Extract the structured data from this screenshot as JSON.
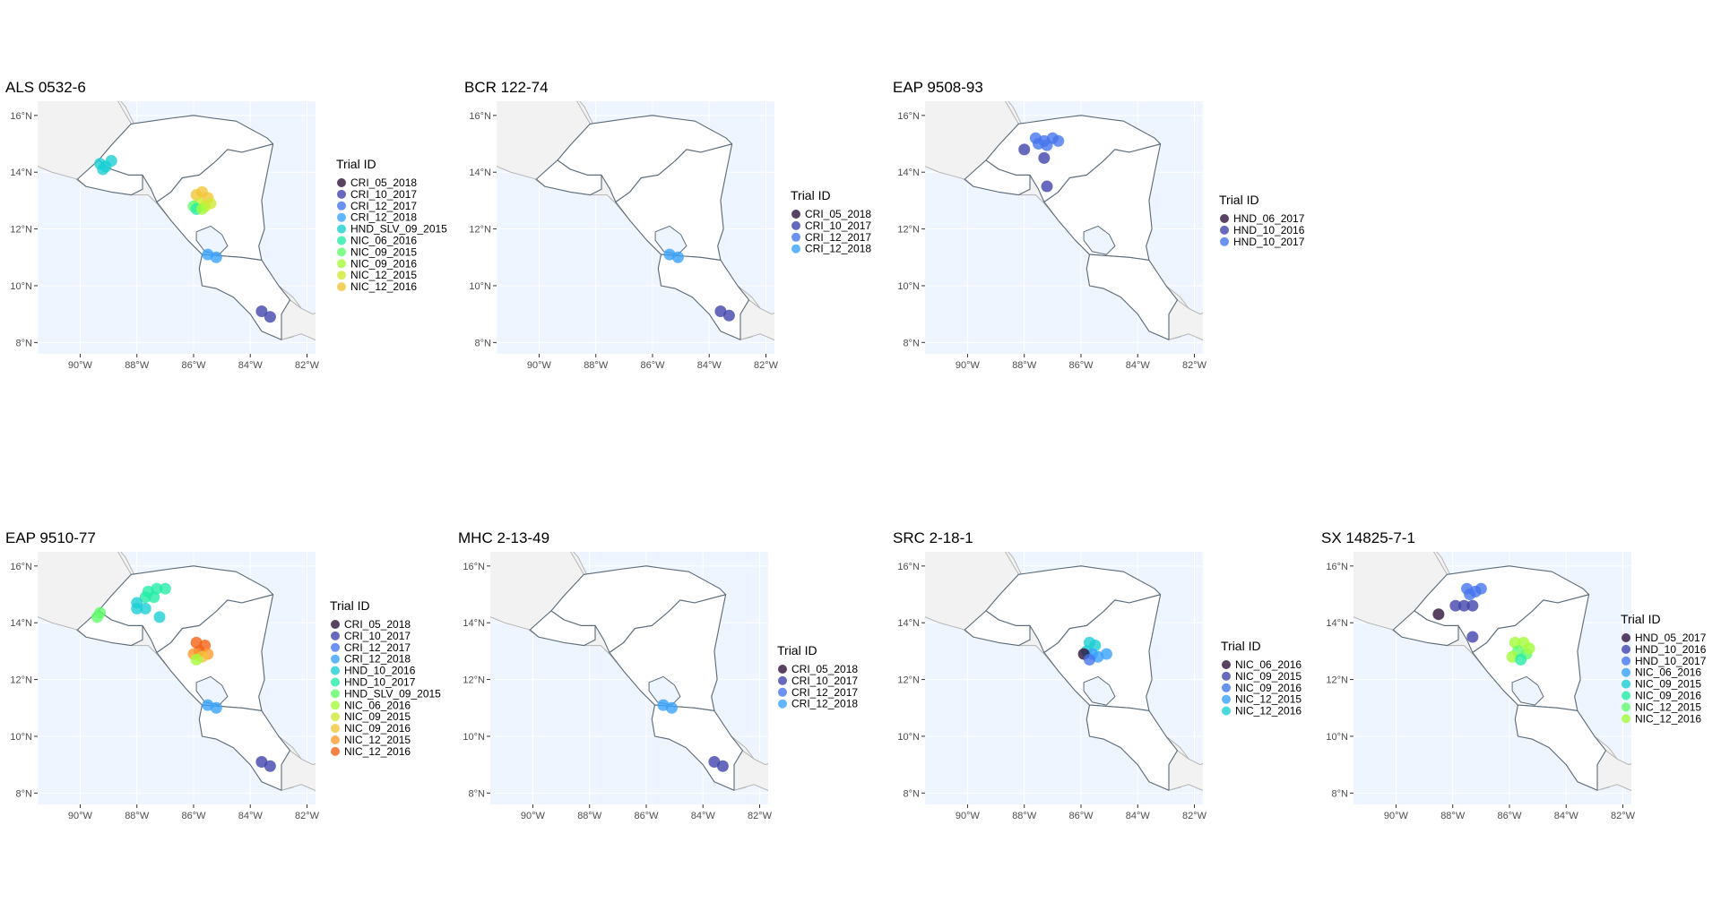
{
  "map": {
    "lon_range": [
      -91.5,
      -81.7
    ],
    "lat_range": [
      7.6,
      16.5
    ],
    "lon_ticks": [
      -90,
      -88,
      -86,
      -84,
      -82
    ],
    "lat_ticks": [
      8,
      10,
      12,
      14,
      16
    ],
    "lon_labels": [
      "90°W",
      "88°W",
      "86°W",
      "84°W",
      "82°W"
    ],
    "lat_labels": [
      "8°N",
      "10°N",
      "12°N",
      "14°N",
      "16°N"
    ],
    "legend_title": "Trial ID",
    "colors": {
      "ocean": "#eef5ff",
      "land_out": "#f2f2f2",
      "land_in": "#ffffff",
      "border": "#5b6b79",
      "grid": "#ffffff"
    }
  },
  "panels": [
    {
      "title": "ALS 0532-6",
      "legend": [
        {
          "label": "CRI_05_2018",
          "color": "#30123b"
        },
        {
          "label": "CRI_10_2017",
          "color": "#4145ab"
        },
        {
          "label": "CRI_12_2017",
          "color": "#4675ed"
        },
        {
          "label": "CRI_12_2018",
          "color": "#39a2fc"
        },
        {
          "label": "HND_SLV_09_2015",
          "color": "#1bcfd4"
        },
        {
          "label": "NIC_06_2016",
          "color": "#24eca6"
        },
        {
          "label": "NIC_09_2015",
          "color": "#61fc6c"
        },
        {
          "label": "NIC_09_2016",
          "color": "#a4fc3b"
        },
        {
          "label": "NIC_12_2015",
          "color": "#d1e834"
        },
        {
          "label": "NIC_12_2016",
          "color": "#f3c63a"
        }
      ],
      "points": [
        {
          "lon": -89.3,
          "lat": 14.3,
          "c": 4
        },
        {
          "lon": -89.1,
          "lat": 14.2,
          "c": 4
        },
        {
          "lon": -88.9,
          "lat": 14.4,
          "c": 4
        },
        {
          "lon": -89.2,
          "lat": 14.1,
          "c": 4
        },
        {
          "lon": -85.9,
          "lat": 13.2,
          "c": 9
        },
        {
          "lon": -85.7,
          "lat": 13.3,
          "c": 9
        },
        {
          "lon": -85.5,
          "lat": 13.1,
          "c": 9
        },
        {
          "lon": -85.8,
          "lat": 12.9,
          "c": 8
        },
        {
          "lon": -85.6,
          "lat": 12.8,
          "c": 8
        },
        {
          "lon": -85.4,
          "lat": 12.9,
          "c": 8
        },
        {
          "lon": -86.0,
          "lat": 12.8,
          "c": 6
        },
        {
          "lon": -85.9,
          "lat": 12.7,
          "c": 5
        },
        {
          "lon": -85.7,
          "lat": 12.7,
          "c": 7
        },
        {
          "lon": -85.5,
          "lat": 11.1,
          "c": 3
        },
        {
          "lon": -85.2,
          "lat": 11.0,
          "c": 3
        },
        {
          "lon": -83.6,
          "lat": 9.1,
          "c": 1
        },
        {
          "lon": -83.3,
          "lat": 8.9,
          "c": 1
        }
      ]
    },
    {
      "title": "BCR 122-74",
      "legend": [
        {
          "label": "CRI_05_2018",
          "color": "#30123b"
        },
        {
          "label": "CRI_10_2017",
          "color": "#4145ab"
        },
        {
          "label": "CRI_12_2017",
          "color": "#4675ed"
        },
        {
          "label": "CRI_12_2018",
          "color": "#39a2fc"
        }
      ],
      "points": [
        {
          "lon": -85.4,
          "lat": 11.1,
          "c": 3
        },
        {
          "lon": -85.1,
          "lat": 11.0,
          "c": 3
        },
        {
          "lon": -83.6,
          "lat": 9.1,
          "c": 1
        },
        {
          "lon": -83.3,
          "lat": 8.95,
          "c": 1
        }
      ]
    },
    {
      "title": "EAP 9508-93",
      "legend": [
        {
          "label": "HND_06_2017",
          "color": "#30123b"
        },
        {
          "label": "HND_10_2016",
          "color": "#4145ab"
        },
        {
          "label": "HND_10_2017",
          "color": "#4675ed"
        }
      ],
      "points": [
        {
          "lon": -87.6,
          "lat": 15.2,
          "c": 2
        },
        {
          "lon": -87.3,
          "lat": 15.1,
          "c": 2
        },
        {
          "lon": -87.0,
          "lat": 15.2,
          "c": 2
        },
        {
          "lon": -86.8,
          "lat": 15.1,
          "c": 2
        },
        {
          "lon": -87.5,
          "lat": 15.0,
          "c": 2
        },
        {
          "lon": -87.2,
          "lat": 14.95,
          "c": 2
        },
        {
          "lon": -88.0,
          "lat": 14.8,
          "c": 1
        },
        {
          "lon": -87.3,
          "lat": 14.5,
          "c": 1
        },
        {
          "lon": -87.2,
          "lat": 13.5,
          "c": 1
        }
      ]
    },
    {
      "title": "EAP 9510-77",
      "legend": [
        {
          "label": "CRI_05_2018",
          "color": "#30123b"
        },
        {
          "label": "CRI_10_2017",
          "color": "#4145ab"
        },
        {
          "label": "CRI_12_2017",
          "color": "#4675ed"
        },
        {
          "label": "CRI_12_2018",
          "color": "#39a2fc"
        },
        {
          "label": "HND_10_2016",
          "color": "#1bcfd4"
        },
        {
          "label": "HND_10_2017",
          "color": "#24eca6"
        },
        {
          "label": "HND_SLV_09_2015",
          "color": "#61fc6c"
        },
        {
          "label": "NIC_06_2016",
          "color": "#a4fc3b"
        },
        {
          "label": "NIC_09_2015",
          "color": "#d1e834"
        },
        {
          "label": "NIC_09_2016",
          "color": "#f3c63a"
        },
        {
          "label": "NIC_12_2015",
          "color": "#fe9b2d"
        },
        {
          "label": "NIC_12_2016",
          "color": "#f36315"
        }
      ],
      "points": [
        {
          "lon": -87.6,
          "lat": 15.1,
          "c": 5
        },
        {
          "lon": -87.3,
          "lat": 15.2,
          "c": 5
        },
        {
          "lon": -87.0,
          "lat": 15.2,
          "c": 5
        },
        {
          "lon": -87.7,
          "lat": 14.9,
          "c": 5
        },
        {
          "lon": -87.4,
          "lat": 14.9,
          "c": 5
        },
        {
          "lon": -88.0,
          "lat": 14.7,
          "c": 4
        },
        {
          "lon": -87.7,
          "lat": 14.5,
          "c": 4
        },
        {
          "lon": -87.2,
          "lat": 14.2,
          "c": 4
        },
        {
          "lon": -88.0,
          "lat": 14.5,
          "c": 4
        },
        {
          "lon": -89.3,
          "lat": 14.35,
          "c": 6
        },
        {
          "lon": -89.4,
          "lat": 14.2,
          "c": 6
        },
        {
          "lon": -85.9,
          "lat": 13.3,
          "c": 11
        },
        {
          "lon": -85.6,
          "lat": 13.2,
          "c": 11
        },
        {
          "lon": -85.8,
          "lat": 13.0,
          "c": 11
        },
        {
          "lon": -85.5,
          "lat": 12.9,
          "c": 10
        },
        {
          "lon": -86.0,
          "lat": 12.9,
          "c": 10
        },
        {
          "lon": -85.7,
          "lat": 12.8,
          "c": 9
        },
        {
          "lon": -85.9,
          "lat": 12.7,
          "c": 7
        },
        {
          "lon": -85.5,
          "lat": 11.1,
          "c": 3
        },
        {
          "lon": -85.2,
          "lat": 11.0,
          "c": 3
        },
        {
          "lon": -83.6,
          "lat": 9.1,
          "c": 1
        },
        {
          "lon": -83.3,
          "lat": 8.95,
          "c": 1
        }
      ]
    },
    {
      "title": "MHC 2-13-49",
      "legend": [
        {
          "label": "CRI_05_2018",
          "color": "#30123b"
        },
        {
          "label": "CRI_10_2017",
          "color": "#4145ab"
        },
        {
          "label": "CRI_12_2017",
          "color": "#4675ed"
        },
        {
          "label": "CRI_12_2018",
          "color": "#39a2fc"
        }
      ],
      "points": [
        {
          "lon": -85.4,
          "lat": 11.1,
          "c": 3
        },
        {
          "lon": -85.1,
          "lat": 11.0,
          "c": 3
        },
        {
          "lon": -83.6,
          "lat": 9.1,
          "c": 1
        },
        {
          "lon": -83.3,
          "lat": 8.95,
          "c": 1
        }
      ]
    },
    {
      "title": "SRC 2-18-1",
      "legend": [
        {
          "label": "NIC_06_2016",
          "color": "#30123b"
        },
        {
          "label": "NIC_09_2015",
          "color": "#4145ab"
        },
        {
          "label": "NIC_09_2016",
          "color": "#4675ed"
        },
        {
          "label": "NIC_12_2015",
          "color": "#39a2fc"
        },
        {
          "label": "NIC_12_2016",
          "color": "#1bcfd4"
        }
      ],
      "points": [
        {
          "lon": -85.7,
          "lat": 13.3,
          "c": 4
        },
        {
          "lon": -85.5,
          "lat": 13.2,
          "c": 4
        },
        {
          "lon": -85.8,
          "lat": 13.0,
          "c": 4
        },
        {
          "lon": -85.6,
          "lat": 12.9,
          "c": 3
        },
        {
          "lon": -85.9,
          "lat": 12.9,
          "c": 0
        },
        {
          "lon": -85.4,
          "lat": 12.8,
          "c": 3
        },
        {
          "lon": -85.7,
          "lat": 12.7,
          "c": 2
        },
        {
          "lon": -85.1,
          "lat": 12.9,
          "c": 3
        }
      ]
    },
    {
      "title": "SX 14825-7-1",
      "legend": [
        {
          "label": "HND_05_2017",
          "color": "#30123b"
        },
        {
          "label": "HND_10_2016",
          "color": "#4145ab"
        },
        {
          "label": "HND_10_2017",
          "color": "#4675ed"
        },
        {
          "label": "NIC_06_2016",
          "color": "#39a2fc"
        },
        {
          "label": "NIC_09_2015",
          "color": "#1bcfd4"
        },
        {
          "label": "NIC_09_2016",
          "color": "#24eca6"
        },
        {
          "label": "NIC_12_2015",
          "color": "#61fc6c"
        },
        {
          "label": "NIC_12_2016",
          "color": "#a4fc3b"
        }
      ],
      "points": [
        {
          "lon": -87.5,
          "lat": 15.2,
          "c": 2
        },
        {
          "lon": -87.2,
          "lat": 15.1,
          "c": 2
        },
        {
          "lon": -87.0,
          "lat": 15.2,
          "c": 2
        },
        {
          "lon": -87.4,
          "lat": 15.0,
          "c": 2
        },
        {
          "lon": -87.9,
          "lat": 14.6,
          "c": 1
        },
        {
          "lon": -87.6,
          "lat": 14.6,
          "c": 1
        },
        {
          "lon": -87.3,
          "lat": 14.6,
          "c": 1
        },
        {
          "lon": -87.3,
          "lat": 13.5,
          "c": 1
        },
        {
          "lon": -88.5,
          "lat": 14.3,
          "c": 0
        },
        {
          "lon": -85.8,
          "lat": 13.3,
          "c": 7
        },
        {
          "lon": -85.5,
          "lat": 13.3,
          "c": 7
        },
        {
          "lon": -85.7,
          "lat": 13.0,
          "c": 6
        },
        {
          "lon": -85.4,
          "lat": 12.9,
          "c": 6
        },
        {
          "lon": -85.9,
          "lat": 12.8,
          "c": 7
        },
        {
          "lon": -85.6,
          "lat": 12.7,
          "c": 5
        },
        {
          "lon": -85.3,
          "lat": 13.1,
          "c": 7
        }
      ]
    }
  ]
}
